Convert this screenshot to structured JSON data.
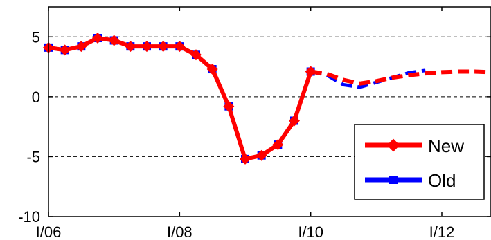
{
  "chart_data": {
    "type": "line",
    "title": "",
    "xlabel": "",
    "ylabel": "",
    "x_tick_labels": [
      "I/06",
      "I/08",
      "I/10",
      "I/12"
    ],
    "x_tick_values": [
      2006,
      2008,
      2010,
      2012
    ],
    "xlim": [
      2006,
      2012.75
    ],
    "y_tick_labels": [
      "5",
      "0",
      "-5",
      "-10"
    ],
    "y_tick_values": [
      5,
      0,
      -5,
      -10
    ],
    "ylim": [
      -10,
      7.5
    ],
    "grid": "dashed horizontal lines at 5, 0, -5",
    "legend_placement": "bottom-right",
    "series": [
      {
        "name": "New",
        "color": "#ff0000",
        "marker": "diamond",
        "x": [
          2006,
          2006.25,
          2006.5,
          2006.75,
          2007,
          2007.25,
          2007.5,
          2007.75,
          2008,
          2008.25,
          2008.5,
          2008.75,
          2009,
          2009.25,
          2009.5,
          2009.75,
          2010
        ],
        "values": [
          4.1,
          3.9,
          4.2,
          4.9,
          4.7,
          4.2,
          4.2,
          4.2,
          4.2,
          3.5,
          2.3,
          -0.8,
          -5.2,
          -4.9,
          -4.0,
          -2.0,
          2.1
        ],
        "forecast_x": [
          2010,
          2010.25,
          2010.5,
          2010.75,
          2011,
          2011.25,
          2011.5,
          2011.75,
          2012,
          2012.25,
          2012.5,
          2012.75
        ],
        "forecast_values": [
          2.1,
          1.9,
          1.4,
          1.1,
          1.3,
          1.6,
          1.8,
          1.95,
          2.05,
          2.1,
          2.1,
          2.05
        ]
      },
      {
        "name": "Old",
        "color": "#0000ff",
        "marker": "square",
        "x": [
          2006,
          2006.25,
          2006.5,
          2006.75,
          2007,
          2007.25,
          2007.5,
          2007.75,
          2008,
          2008.25,
          2008.5,
          2008.75,
          2009,
          2009.25,
          2009.5,
          2009.75,
          2010
        ],
        "values": [
          4.1,
          3.9,
          4.2,
          4.9,
          4.7,
          4.2,
          4.2,
          4.2,
          4.2,
          3.5,
          2.3,
          -0.8,
          -5.2,
          -4.9,
          -4.0,
          -2.0,
          2.1
        ],
        "forecast_x": [
          2010,
          2010.25,
          2010.5,
          2010.75,
          2011,
          2011.25,
          2011.5,
          2011.75
        ],
        "forecast_values": [
          2.1,
          1.8,
          1.0,
          0.8,
          1.2,
          1.6,
          2.0,
          2.2
        ]
      }
    ]
  }
}
